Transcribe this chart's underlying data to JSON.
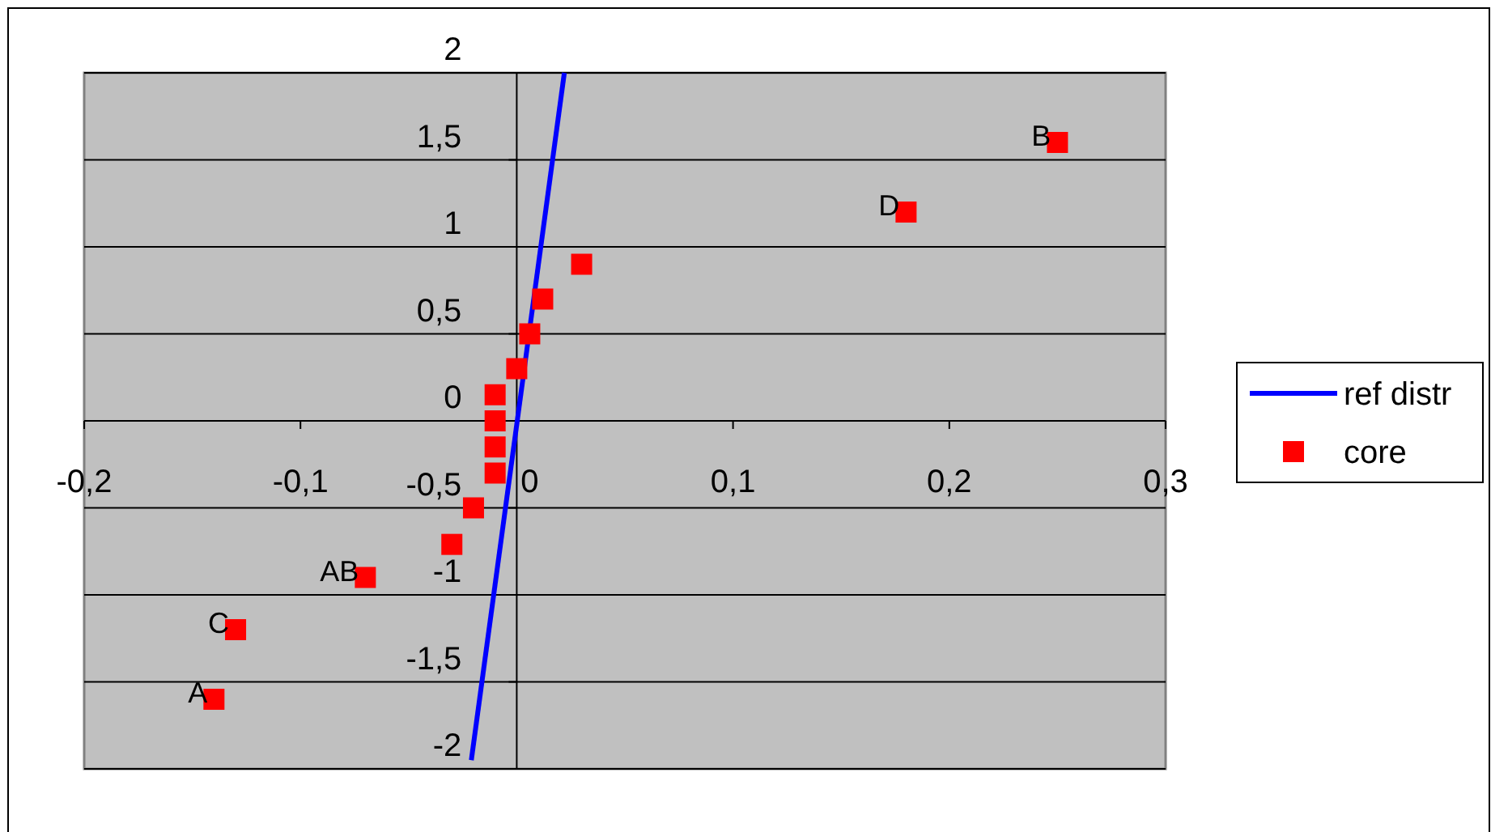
{
  "chart_data": {
    "type": "scatter",
    "xlim": [
      -0.2,
      0.3
    ],
    "ylim": [
      -2,
      2
    ],
    "xticks": [
      {
        "value": -0.2,
        "label": "-0,2"
      },
      {
        "value": -0.1,
        "label": "-0,1"
      },
      {
        "value": 0,
        "label": "0"
      },
      {
        "value": 0.1,
        "label": "0,1"
      },
      {
        "value": 0.2,
        "label": "0,2"
      },
      {
        "value": 0.3,
        "label": "0,3"
      }
    ],
    "yticks": [
      {
        "value": -2,
        "label": "-2"
      },
      {
        "value": -1.5,
        "label": "-1,5"
      },
      {
        "value": -1,
        "label": "-1"
      },
      {
        "value": -0.5,
        "label": "-0,5"
      },
      {
        "value": 0,
        "label": "0"
      },
      {
        "value": 0.5,
        "label": "0,5"
      },
      {
        "value": 1,
        "label": "1"
      },
      {
        "value": 1.5,
        "label": "1,5"
      },
      {
        "value": 2,
        "label": "2"
      }
    ],
    "grid": "y",
    "legend": "right",
    "series": [
      {
        "name": "ref distr",
        "type": "line",
        "color": "#0000ff",
        "marker": "none",
        "x": [
          -0.021,
          0.022
        ],
        "values": [
          -1.95,
          2
        ]
      },
      {
        "name": "core",
        "type": "scatter",
        "color": "#ff0000",
        "marker": "square",
        "x": [
          -0.14,
          -0.13,
          -0.07,
          -0.03,
          -0.02,
          -0.01,
          -0.01,
          -0.01,
          -0.01,
          0,
          0.006,
          0.012,
          0.03,
          0.18,
          0.25
        ],
        "values": [
          -1.6,
          -1.2,
          -0.9,
          -0.71,
          -0.5,
          -0.3,
          -0.15,
          0,
          0.15,
          0.3,
          0.5,
          0.7,
          0.9,
          1.2,
          1.6
        ]
      }
    ],
    "annotations": [
      {
        "text": "A",
        "x": -0.14,
        "y": -1.6
      },
      {
        "text": "C",
        "x": -0.13,
        "y": -1.2
      },
      {
        "text": "AB",
        "x": -0.07,
        "y": -0.9
      },
      {
        "text": "D",
        "x": 0.18,
        "y": 1.2
      },
      {
        "text": "B",
        "x": 0.25,
        "y": 1.6
      }
    ]
  }
}
